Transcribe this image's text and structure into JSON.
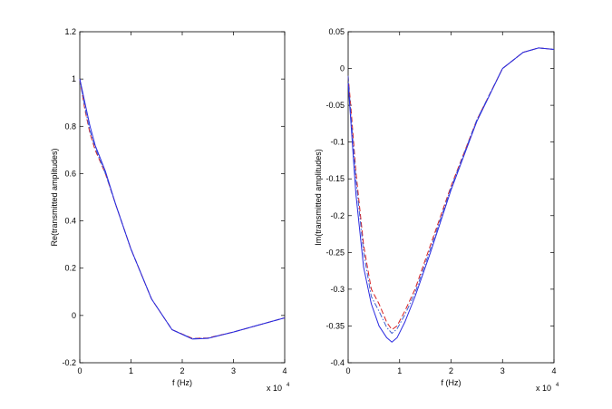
{
  "chart_data": [
    {
      "type": "line",
      "title": "",
      "xlabel": "f (Hz)",
      "ylabel": "Re(transmitted amplitudes)",
      "x_multiplier": "x 10",
      "x_multiplier_exp": "4",
      "xlim": [
        0,
        4
      ],
      "ylim": [
        -0.2,
        1.2
      ],
      "xticks": [
        0,
        1,
        2,
        3,
        4
      ],
      "xtick_labels": [
        "0",
        "1",
        "2",
        "3",
        "4"
      ],
      "yticks": [
        -0.2,
        0,
        0.2,
        0.4,
        0.6,
        0.8,
        1,
        1.2
      ],
      "ytick_labels": [
        "-0.2",
        "0",
        "0.2",
        "0.4",
        "0.6",
        "0.8",
        "1",
        "1.2"
      ],
      "grid": false,
      "series": [
        {
          "color": "#d62020",
          "dash": "dashed",
          "x": [
            0,
            0.1,
            0.2,
            0.3,
            0.5,
            0.7,
            1.0,
            1.4,
            1.8,
            2.2,
            2.5,
            3.0,
            3.5,
            4.0
          ],
          "y": [
            1.0,
            0.87,
            0.77,
            0.7,
            0.6,
            0.47,
            0.28,
            0.07,
            -0.06,
            -0.097,
            -0.095,
            -0.07,
            -0.04,
            -0.01
          ]
        },
        {
          "color": "#4060d0",
          "dash": "dashdot",
          "x": [
            0,
            0.1,
            0.2,
            0.3,
            0.5,
            0.7,
            1.0,
            1.4,
            1.8,
            2.2,
            2.5,
            3.0,
            3.5,
            4.0
          ],
          "y": [
            1.0,
            0.88,
            0.78,
            0.71,
            0.6,
            0.47,
            0.28,
            0.07,
            -0.06,
            -0.098,
            -0.096,
            -0.07,
            -0.04,
            -0.01
          ]
        },
        {
          "color": "#2a2ae0",
          "dash": "solid",
          "x": [
            0,
            0.1,
            0.2,
            0.3,
            0.5,
            0.7,
            1.0,
            1.4,
            1.8,
            2.2,
            2.5,
            3.0,
            3.5,
            4.0
          ],
          "y": [
            1.0,
            0.9,
            0.8,
            0.72,
            0.61,
            0.47,
            0.28,
            0.07,
            -0.06,
            -0.1,
            -0.097,
            -0.07,
            -0.04,
            -0.01
          ]
        }
      ]
    },
    {
      "type": "line",
      "title": "",
      "xlabel": "f (Hz)",
      "ylabel": "Im(transmitted amplitudes)",
      "x_multiplier": "x 10",
      "x_multiplier_exp": "4",
      "xlim": [
        0,
        4
      ],
      "ylim": [
        -0.4,
        0.05
      ],
      "xticks": [
        0,
        1,
        2,
        3,
        4
      ],
      "xtick_labels": [
        "0",
        "1",
        "2",
        "3",
        "4"
      ],
      "yticks": [
        -0.4,
        -0.35,
        -0.3,
        -0.25,
        -0.2,
        -0.15,
        -0.1,
        -0.05,
        0,
        0.05
      ],
      "ytick_labels": [
        "-0.4",
        "-0.35",
        "-0.3",
        "-0.25",
        "-0.2",
        "-0.15",
        "-0.1",
        "-0.05",
        "0",
        "0.05"
      ],
      "grid": false,
      "series": [
        {
          "color": "#d62020",
          "dash": "dashed",
          "x": [
            0,
            0.05,
            0.15,
            0.3,
            0.45,
            0.6,
            0.75,
            0.85,
            0.95,
            1.1,
            1.3,
            1.6,
            2.0,
            2.5,
            3.0,
            3.4,
            3.7,
            4.0
          ],
          "y": [
            -0.01,
            -0.05,
            -0.14,
            -0.24,
            -0.3,
            -0.32,
            -0.345,
            -0.355,
            -0.35,
            -0.33,
            -0.3,
            -0.24,
            -0.16,
            -0.07,
            0.0,
            0.022,
            0.028,
            0.026
          ]
        },
        {
          "color": "#4060d0",
          "dash": "dashdot",
          "x": [
            0,
            0.05,
            0.15,
            0.3,
            0.45,
            0.6,
            0.75,
            0.85,
            0.95,
            1.1,
            1.3,
            1.6,
            2.0,
            2.5,
            3.0,
            3.4,
            3.7,
            4.0
          ],
          "y": [
            -0.01,
            -0.06,
            -0.15,
            -0.25,
            -0.31,
            -0.33,
            -0.352,
            -0.36,
            -0.354,
            -0.335,
            -0.305,
            -0.245,
            -0.162,
            -0.07,
            0.0,
            0.022,
            0.028,
            0.026
          ]
        },
        {
          "color": "#2a2ae0",
          "dash": "solid",
          "x": [
            0,
            0.05,
            0.15,
            0.3,
            0.45,
            0.6,
            0.75,
            0.85,
            0.95,
            1.1,
            1.3,
            1.6,
            2.0,
            2.5,
            3.0,
            3.4,
            3.7,
            4.0
          ],
          "y": [
            -0.02,
            -0.07,
            -0.17,
            -0.27,
            -0.32,
            -0.35,
            -0.366,
            -0.372,
            -0.366,
            -0.345,
            -0.31,
            -0.25,
            -0.165,
            -0.072,
            0.0,
            0.022,
            0.028,
            0.026
          ]
        }
      ]
    }
  ]
}
